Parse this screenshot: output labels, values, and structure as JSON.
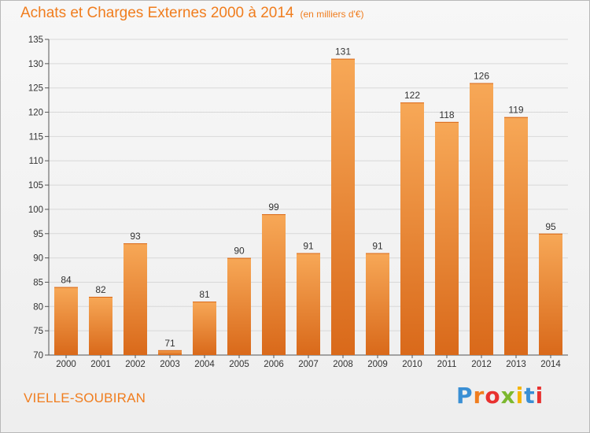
{
  "header": {
    "title": "Achats et Charges Externes 2000 à 2014",
    "subtitle": "(en milliers d'€)"
  },
  "footer": {
    "commune": "VIELLE-SOUBIRAN",
    "logo_letters": [
      "P",
      "r",
      "o",
      "x",
      "i",
      "t",
      "i"
    ]
  },
  "colors": {
    "accent": "#f07d1e",
    "bar_light": "#f7a857",
    "bar_dark": "#d9691a",
    "grid": "#d8d8d8"
  },
  "chart_data": {
    "type": "bar",
    "title": "Achats et Charges Externes 2000 à 2014",
    "subtitle": "(en milliers d'€)",
    "categories": [
      "2000",
      "2001",
      "2002",
      "2003",
      "2004",
      "2005",
      "2006",
      "2007",
      "2008",
      "2009",
      "2010",
      "2011",
      "2012",
      "2013",
      "2014"
    ],
    "values": [
      84,
      82,
      93,
      71,
      81,
      90,
      99,
      91,
      131,
      91,
      122,
      118,
      126,
      119,
      95
    ],
    "ylim": [
      70,
      135
    ],
    "yticks": [
      70,
      75,
      80,
      85,
      90,
      95,
      100,
      105,
      110,
      115,
      120,
      125,
      130,
      135
    ],
    "xlabel": "",
    "ylabel": "",
    "grid": true
  }
}
